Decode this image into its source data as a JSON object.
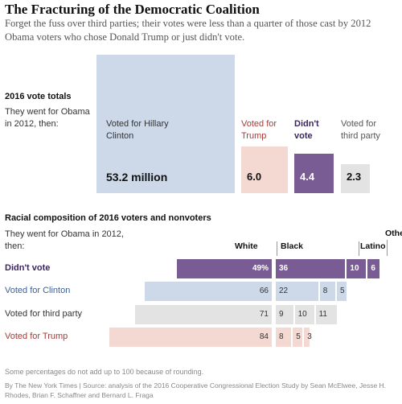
{
  "header": {
    "title": "The Fracturing of the Democratic Coalition",
    "subtitle": "Forget the fuss over third parties; their votes were less than a quarter of those cast by 2012 Obama voters who chose Donald Trump or just didn't vote."
  },
  "colors": {
    "clinton": "#cdd9e9",
    "trump": "#f3d9d2",
    "didnt_vote": "#7a5c94",
    "third_party": "#e3e3e3",
    "clinton_label": "#3d5f92",
    "trump_label": "#a53b37",
    "didnt_vote_label": "#3b2560"
  },
  "chart_data": [
    {
      "type": "bar",
      "variant": "proportional-squares",
      "title": "2016 vote totals",
      "lead_label": "They went for Obama in 2012, then:",
      "categories": [
        "Voted for Hillary Clinton",
        "Voted for Trump",
        "Didn't vote",
        "Voted for third party"
      ],
      "values": [
        53.2,
        6.0,
        4.4,
        2.3
      ],
      "value_labels": [
        "53.2 million",
        "6.0",
        "4.4",
        "2.3"
      ],
      "unit": "million votes"
    },
    {
      "type": "bar",
      "variant": "stacked-horizontal",
      "title": "Racial composition of 2016 voters and nonvoters",
      "lead_label": "They went for Obama in 2012, then:",
      "groups": [
        "White",
        "Black",
        "Latino",
        "Other"
      ],
      "categories": [
        "Didn't vote",
        "Voted for Clinton",
        "Voted for third party",
        "Voted for Trump"
      ],
      "series": [
        {
          "name": "White",
          "values": [
            49,
            66,
            71,
            84
          ],
          "value_labels": [
            "49%",
            "66",
            "71",
            "84"
          ]
        },
        {
          "name": "Black",
          "values": [
            36,
            22,
            9,
            8
          ],
          "value_labels": [
            "36",
            "22",
            "9",
            "8"
          ]
        },
        {
          "name": "Latino",
          "values": [
            10,
            8,
            10,
            5
          ],
          "value_labels": [
            "10",
            "8",
            "10",
            "5"
          ]
        },
        {
          "name": "Other",
          "values": [
            6,
            5,
            11,
            3
          ],
          "value_labels": [
            "6",
            "5",
            "11",
            "3"
          ]
        }
      ],
      "xlim": [
        0,
        100
      ]
    }
  ],
  "footer": {
    "note": "Some percentages do not add up to 100 because of rounding.",
    "source": "By The New York Times | Source: analysis of the 2016 Cooperative Congressional Election Study by Sean McElwee, Jesse H. Rhodes, Brian F. Schaffner and Bernard L. Fraga"
  }
}
